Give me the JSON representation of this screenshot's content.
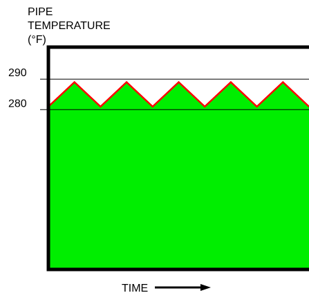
{
  "chart_data": {
    "type": "area",
    "ylabel_lines": [
      "PIPE",
      "TEMPERATURE",
      "(°F)"
    ],
    "xlabel": "TIME",
    "y_ticks": [
      290,
      280
    ],
    "reference_lines": [
      290,
      280
    ],
    "ylim": [
      228,
      300
    ],
    "series": [
      {
        "fill_color": "#00ee00",
        "line_color": "#ff0000",
        "x": [
          0,
          1,
          2,
          3,
          4,
          5,
          6,
          7,
          8,
          9,
          10
        ],
        "values": [
          281,
          289,
          281,
          289,
          281,
          289,
          281,
          289,
          281,
          289,
          281
        ]
      }
    ],
    "grid": false,
    "colors": {
      "axis": "#000000",
      "reference_line": "#000000"
    }
  }
}
